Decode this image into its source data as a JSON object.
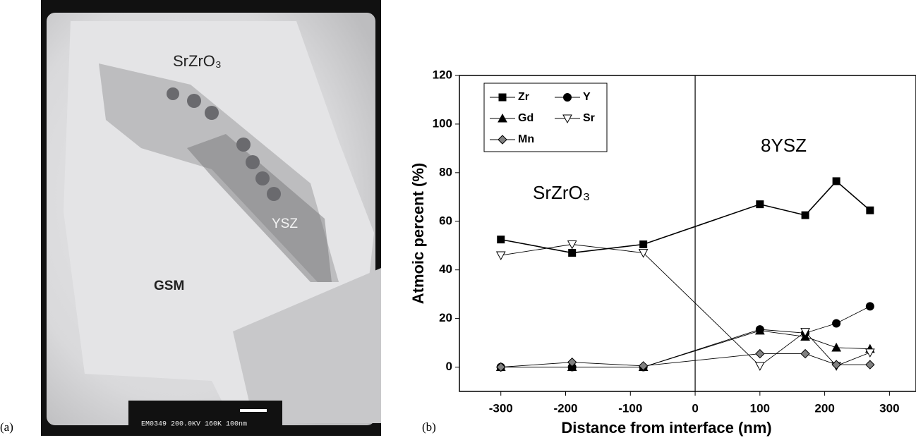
{
  "image_panel": {
    "label": "(a)",
    "annotations": [
      "SrZrO₃",
      "YSZ",
      "GSM"
    ],
    "scale_text": "EM0349 200.0KV 160K 100nm"
  },
  "chart_data": {
    "type": "line",
    "panel_label": "(b)",
    "x_label": "Distance from interface (nm)",
    "y_label": "Atmoic percent (%)",
    "annotations": [
      "SrZrO₃",
      "8YSZ"
    ],
    "x": [
      -300,
      -190,
      -80,
      100,
      170,
      218,
      270
    ],
    "series": [
      {
        "name": "Zr",
        "color": "#000000",
        "marker": "square",
        "values": [
          52.5,
          47,
          50.5,
          67,
          62.5,
          76.5,
          64.5
        ]
      },
      {
        "name": "Y",
        "color": "#000000",
        "marker": "circle",
        "values": [
          0,
          0,
          0,
          15.5,
          14,
          18,
          25
        ]
      },
      {
        "name": "Gd",
        "color": "#000000",
        "marker": "triangle",
        "values": [
          0,
          0,
          0,
          15,
          12.5,
          8,
          7.5
        ]
      },
      {
        "name": "Sr",
        "color": "#ffffff",
        "marker": "down-triangle",
        "values": [
          46,
          50.5,
          47,
          0.5,
          14.5,
          0.5,
          6
        ]
      },
      {
        "name": "Mn",
        "color": "#808080",
        "marker": "diamond",
        "values": [
          0,
          2,
          0.5,
          5.5,
          5.5,
          1,
          1
        ]
      }
    ],
    "xlim": [
      -364,
      341
    ],
    "ylim": [
      -10,
      120
    ],
    "xticks": [
      -300,
      -200,
      -100,
      0,
      100,
      200,
      300
    ],
    "yticks": [
      0,
      20,
      40,
      60,
      80,
      100,
      120
    ]
  }
}
